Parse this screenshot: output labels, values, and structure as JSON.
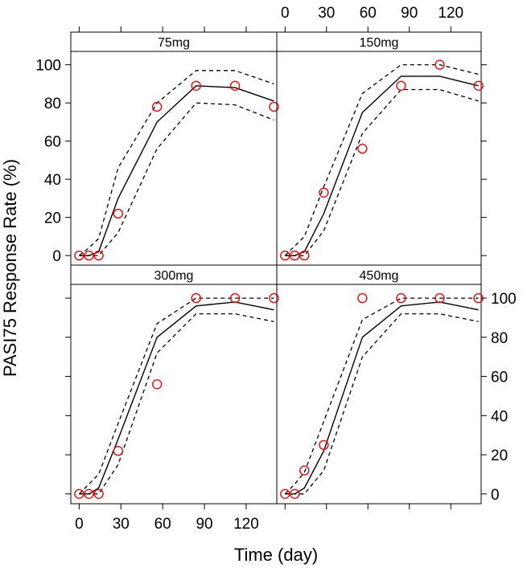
{
  "chart_data": {
    "type": "line",
    "xlabel": "Time (day)",
    "ylabel": "PASI75 Response Rate (%)",
    "xlim": [
      -6,
      142
    ],
    "ylim": [
      -5,
      107
    ],
    "x_ticks": [
      0,
      30,
      60,
      90,
      120
    ],
    "y_ticks": [
      0,
      20,
      40,
      60,
      80,
      100
    ],
    "colors": {
      "observed": "#ff0000",
      "lines": "#000000",
      "strip": "#ffffff"
    },
    "panels": [
      {
        "label": "75mg",
        "observed": {
          "x": [
            0,
            7,
            14,
            28,
            56,
            84,
            112,
            140
          ],
          "y": [
            0,
            0,
            0,
            22,
            78,
            89,
            89,
            78
          ]
        },
        "median": {
          "x": [
            0,
            7,
            14,
            28,
            56,
            84,
            112,
            140
          ],
          "y": [
            0,
            0,
            2,
            30,
            70,
            89,
            88,
            81
          ]
        },
        "lower": {
          "x": [
            0,
            7,
            14,
            28,
            56,
            84,
            112,
            140
          ],
          "y": [
            0,
            0,
            0,
            12,
            56,
            80,
            79,
            71
          ]
        },
        "upper": {
          "x": [
            0,
            7,
            14,
            28,
            56,
            84,
            112,
            140
          ],
          "y": [
            0,
            4,
            9,
            46,
            80,
            97,
            97,
            90
          ]
        }
      },
      {
        "label": "150mg",
        "observed": {
          "x": [
            0,
            7,
            14,
            28,
            56,
            84,
            112,
            140
          ],
          "y": [
            0,
            0,
            0,
            33,
            56,
            89,
            100,
            89
          ]
        },
        "median": {
          "x": [
            0,
            7,
            14,
            28,
            56,
            84,
            112,
            140
          ],
          "y": [
            0,
            0,
            2,
            22,
            75,
            94,
            94,
            89
          ]
        },
        "lower": {
          "x": [
            0,
            7,
            14,
            28,
            56,
            84,
            112,
            140
          ],
          "y": [
            0,
            0,
            0,
            13,
            64,
            87,
            87,
            81
          ]
        },
        "upper": {
          "x": [
            0,
            7,
            14,
            28,
            56,
            84,
            112,
            140
          ],
          "y": [
            0,
            5,
            10,
            36,
            85,
            100,
            100,
            95
          ]
        }
      },
      {
        "label": "300mg",
        "observed": {
          "x": [
            0,
            7,
            14,
            28,
            56,
            84,
            112,
            140
          ],
          "y": [
            0,
            0,
            0,
            22,
            56,
            100,
            100,
            100
          ]
        },
        "median": {
          "x": [
            0,
            7,
            14,
            28,
            56,
            84,
            112,
            140
          ],
          "y": [
            0,
            0,
            3,
            28,
            80,
            96,
            98,
            94
          ]
        },
        "lower": {
          "x": [
            0,
            7,
            14,
            28,
            56,
            84,
            112,
            140
          ],
          "y": [
            0,
            0,
            0,
            15,
            72,
            92,
            92,
            88
          ]
        },
        "upper": {
          "x": [
            0,
            7,
            14,
            28,
            56,
            84,
            112,
            140
          ],
          "y": [
            0,
            5,
            10,
            36,
            87,
            100,
            100,
            100
          ]
        }
      },
      {
        "label": "450mg",
        "observed": {
          "x": [
            0,
            7,
            14,
            28,
            56,
            84,
            112,
            140
          ],
          "y": [
            0,
            0,
            12,
            25,
            100,
            100,
            100,
            100
          ]
        },
        "median": {
          "x": [
            0,
            7,
            14,
            28,
            56,
            84,
            112,
            140
          ],
          "y": [
            0,
            0,
            3,
            22,
            80,
            96,
            98,
            94
          ]
        },
        "lower": {
          "x": [
            0,
            7,
            14,
            28,
            56,
            84,
            112,
            140
          ],
          "y": [
            0,
            0,
            0,
            12,
            70,
            92,
            92,
            88
          ]
        },
        "upper": {
          "x": [
            0,
            7,
            14,
            28,
            56,
            84,
            112,
            140
          ],
          "y": [
            0,
            5,
            11,
            37,
            89,
            100,
            100,
            100
          ]
        }
      }
    ]
  }
}
